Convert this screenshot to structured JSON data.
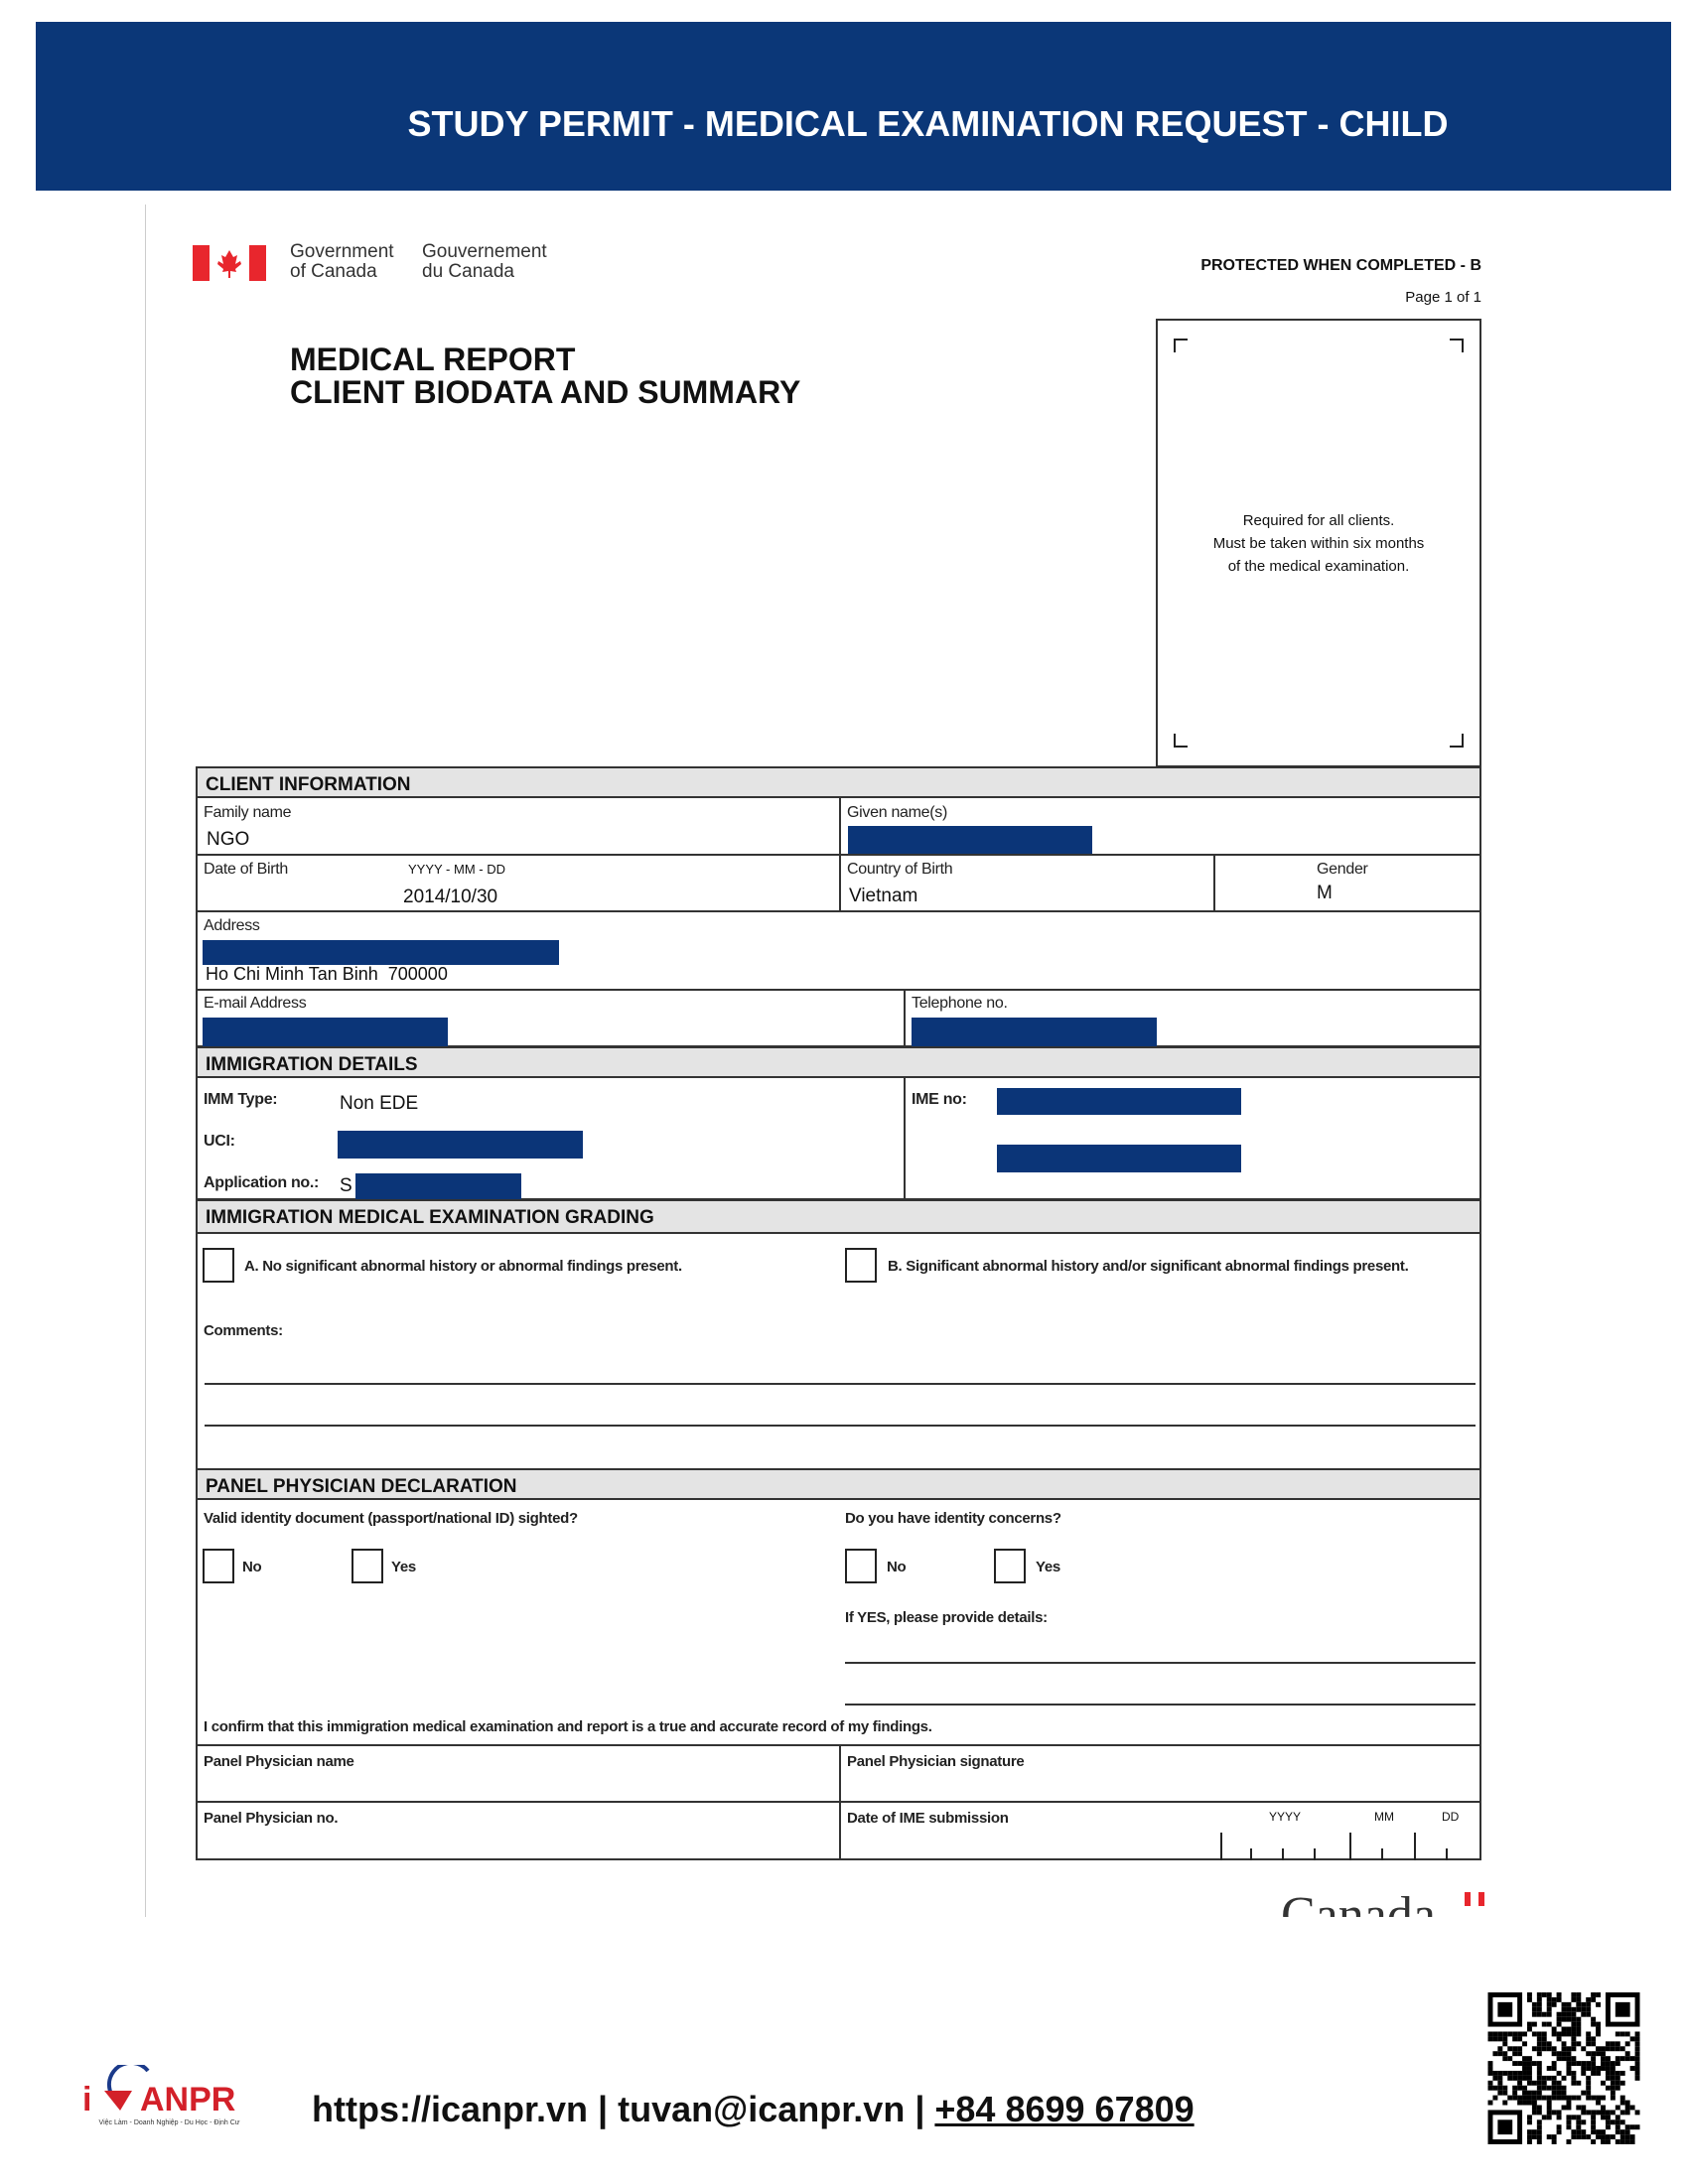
{
  "banner": {
    "title": "STUDY PERMIT - MEDICAL EXAMINATION REQUEST - CHILD"
  },
  "gov": {
    "en1": "Government",
    "en2": "of Canada",
    "fr1": "Gouvernement",
    "fr2": "du Canada"
  },
  "header": {
    "protected": "PROTECTED WHEN COMPLETED - B",
    "page": "Page 1 of 1",
    "title1": "MEDICAL REPORT",
    "title2": "CLIENT BIODATA AND SUMMARY"
  },
  "photo": {
    "line1": "Required for all clients.",
    "line2": "Must be taken within six months",
    "line3": "of the medical examination."
  },
  "client": {
    "section": "CLIENT INFORMATION",
    "family_label": "Family name",
    "family": "NGO",
    "given_label": "Given name(s)",
    "dob_label": "Date of Birth",
    "dob_format": "YYYY - MM - DD",
    "dob": "2014/10/30",
    "country_label": "Country of Birth",
    "country": "Vietnam",
    "gender_label": "Gender",
    "gender": "M",
    "address_label": "Address",
    "address": "Ho Chi Minh Tan Binh  700000",
    "email_label": "E-mail Address",
    "phone_label": "Telephone no."
  },
  "immigration": {
    "section": "IMMIGRATION DETAILS",
    "imm_type_label": "IMM Type:",
    "imm_type": "Non EDE",
    "uci_label": "UCI:",
    "app_label": "Application no.:",
    "app_prefix": "S",
    "ime_label": "IME no:"
  },
  "grading": {
    "section": "IMMIGRATION MEDICAL EXAMINATION GRADING",
    "a": "A. No significant abnormal history or abnormal findings present.",
    "b": "B. Significant abnormal history and/or significant abnormal findings present.",
    "comments": "Comments:"
  },
  "panel": {
    "section": "PANEL PHYSICIAN DECLARATION",
    "q1": "Valid identity document (passport/national ID) sighted?",
    "q2": "Do you have identity concerns?",
    "no": "No",
    "yes": "Yes",
    "details": "If YES, please provide details:",
    "confirm": "I confirm that this immigration medical examination and report is a true and accurate record of my findings.",
    "name_label": "Panel Physician name",
    "sig_label": "Panel Physician signature",
    "no_label": "Panel Physician no.",
    "date_label": "Date of IME submission",
    "yyyy": "YYYY",
    "mm": "MM",
    "dd": "DD"
  },
  "wordmark": "Canada",
  "footer": {
    "logo": "iCANPR",
    "tagline": "Việc Làm - Doanh Nghiệp - Du Học - Định Cư",
    "website": "https://icanpr.vn",
    "sep": " | ",
    "email": "tuvan@icanpr.vn",
    "phone": "+84 8699 67809"
  },
  "colors": {
    "banner": "#0b3778",
    "redaction": "#0b3578",
    "section": "#e4e4e4"
  }
}
